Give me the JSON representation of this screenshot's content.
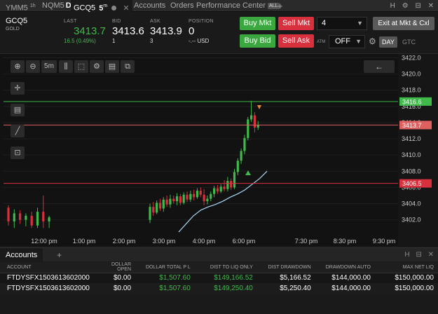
{
  "tabs": [
    {
      "label": "YMM5",
      "sup": "1",
      "suffix": "h"
    },
    {
      "label": "NQM5",
      "suffix": "D"
    },
    {
      "label": "GCQ5",
      "suffix": "5",
      "sup": "m",
      "active": true
    },
    {
      "label": "Accounts"
    },
    {
      "label": "Orders"
    },
    {
      "label": "Performance Center",
      "badge": "ALL"
    }
  ],
  "window_controls": [
    "H",
    "gear-icon",
    "pin-icon",
    "close-icon"
  ],
  "quote": {
    "symbol": "GCQ5",
    "name": "GOLD",
    "last_label": "LAST",
    "last": "3413.7",
    "change": "16.5 (0.49%)",
    "bid_label": "BID",
    "bid": "3413.6",
    "bid_size": "1",
    "ask_label": "ASK",
    "ask": "3413.9",
    "ask_size": "3",
    "position_label": "POSITION",
    "position": "0",
    "position_sub": "-.-- USD"
  },
  "trade": {
    "buy_mkt": "Buy Mkt",
    "sell_mkt": "Sell Mkt",
    "buy_bid": "Buy Bid",
    "sell_ask": "Sell Ask",
    "quantity": "4",
    "exit": "Exit at Mkt & Cxl",
    "atm_label": "ATM",
    "atm": "OFF",
    "tif_day": "DAY",
    "tif_gtc": "GTC"
  },
  "toolbar": {
    "interval": "5m",
    "icons": [
      "zoom-in-icon",
      "zoom-out-icon",
      "candlestick-icon",
      "select-box-icon",
      "gear-icon",
      "template-icon"
    ],
    "side_icons": [
      "crosshair-icon",
      "notes-icon",
      "draw-line-icon",
      "lock-icon"
    ],
    "back": "←"
  },
  "chart_data": {
    "type": "candlestick",
    "x_ticks": [
      "12:00 pm",
      "1:00 pm",
      "2:00 pm",
      "3:00 pm",
      "4:00 pm",
      "6:00 pm",
      "7:30 pm",
      "8:30 pm",
      "9:30 pm"
    ],
    "y_ticks": [
      "3422.0",
      "3420.0",
      "3418.0",
      "3416.0",
      "3414.0",
      "3412.0",
      "3410.0",
      "3408.0",
      "3406.0",
      "3404.0",
      "3402.0"
    ],
    "ylim": [
      3400.5,
      3422.3
    ],
    "price_lines": [
      {
        "value": 3416.6,
        "label": "3416.6",
        "color": "#3fb94a"
      },
      {
        "value": 3413.7,
        "label": "3413.7",
        "color": "#e06060"
      },
      {
        "value": 3406.5,
        "label": "3406.5",
        "color": "#d9303d"
      }
    ],
    "candles": [
      [
        3403.5,
        3403.8,
        3401.3,
        3401.8
      ],
      [
        3401.8,
        3403.3,
        3401.0,
        3402.8
      ],
      [
        3402.8,
        3403.2,
        3401.5,
        3402.0
      ],
      [
        3402.0,
        3402.8,
        3401.2,
        3402.5
      ],
      [
        3402.5,
        3403.0,
        3401.0,
        3401.3
      ],
      [
        3401.3,
        3403.5,
        3401.0,
        3403.0
      ],
      [
        3403.0,
        3405.0,
        3401.0,
        3401.8
      ],
      [
        3401.8,
        3402.5,
        3401.0,
        3402.3
      ],
      [
        3402.0,
        3404.0,
        3401.6,
        3403.6
      ],
      [
        3403.6,
        3404.2,
        3402.5,
        3402.9
      ],
      [
        3402.9,
        3404.4,
        3402.7,
        3404.1
      ],
      [
        3404.1,
        3404.6,
        3403.1,
        3403.4
      ],
      [
        3403.4,
        3404.8,
        3403.0,
        3404.5
      ],
      [
        3404.5,
        3405.0,
        3403.6,
        3403.9
      ],
      [
        3403.9,
        3405.1,
        3403.5,
        3404.6
      ],
      [
        3404.6,
        3405.0,
        3404.0,
        3404.3
      ],
      [
        3404.3,
        3405.3,
        3403.8,
        3404.9
      ],
      [
        3404.9,
        3405.2,
        3403.8,
        3404.1
      ],
      [
        3404.1,
        3405.4,
        3403.9,
        3405.1
      ],
      [
        3405.1,
        3405.5,
        3404.2,
        3404.5
      ],
      [
        3404.5,
        3405.6,
        3404.2,
        3405.2
      ],
      [
        3405.2,
        3405.7,
        3404.4,
        3404.8
      ],
      [
        3404.8,
        3405.9,
        3404.6,
        3405.6
      ],
      [
        3405.6,
        3406.0,
        3404.8,
        3405.1
      ],
      [
        3405.1,
        3405.8,
        3403.8,
        3404.3
      ],
      [
        3404.3,
        3405.0,
        3403.9,
        3404.6
      ],
      [
        3404.6,
        3405.5,
        3404.3,
        3405.2
      ],
      [
        3405.2,
        3406.2,
        3404.8,
        3405.9
      ],
      [
        3405.9,
        3406.3,
        3405.2,
        3405.5
      ],
      [
        3405.5,
        3406.4,
        3405.3,
        3406.1
      ],
      [
        3406.1,
        3406.9,
        3405.5,
        3405.8
      ],
      [
        3405.8,
        3407.3,
        3405.5,
        3406.8
      ],
      [
        3406.8,
        3407.1,
        3405.7,
        3406.0
      ],
      [
        3406.0,
        3408.3,
        3405.8,
        3407.9
      ],
      [
        3407.9,
        3409.6,
        3407.5,
        3409.3
      ],
      [
        3409.3,
        3410.8,
        3408.9,
        3410.5
      ],
      [
        3410.5,
        3412.5,
        3410.1,
        3412.1
      ],
      [
        3412.1,
        3414.7,
        3411.8,
        3414.4
      ],
      [
        3414.4,
        3416.7,
        3414.1,
        3414.9
      ],
      [
        3414.9,
        3415.3,
        3412.8,
        3413.4
      ],
      [
        3413.4,
        3414.2,
        3413.1,
        3413.7
      ]
    ],
    "moving_average": [
      3400.5,
      3401.5,
      3402.5,
      3403.2,
      3403.6,
      3403.9,
      3404.3,
      3404.8,
      3405.2,
      3405.7,
      3406.4,
      3407.1,
      3408.0
    ]
  },
  "accounts": {
    "tab": "Accounts",
    "columns": [
      "ACCOUNT",
      "DOLLAR OPEN",
      "DOLLAR TOTAL P L",
      "DIST TO LIQ ONLY",
      "DIST DRAWDOWN",
      "DRAWDOWN AUTO",
      "MAX NET LIQ"
    ],
    "rows": [
      [
        "FTDYSFX1503613602000",
        "$0.00",
        "$1,507.60",
        "$149,166.52",
        "$5,166.52",
        "$144,000.00",
        "$150,000.00"
      ],
      [
        "FTDYSFX1503613602000",
        "$0.00",
        "$1,507.60",
        "$149,250.40",
        "$5,250.40",
        "$144,000.00",
        "$150,000.00"
      ]
    ]
  },
  "colors": {
    "up": "#3fb94a",
    "down": "#d9303d",
    "bg": "#121212",
    "ma": "#a9d8f5"
  }
}
